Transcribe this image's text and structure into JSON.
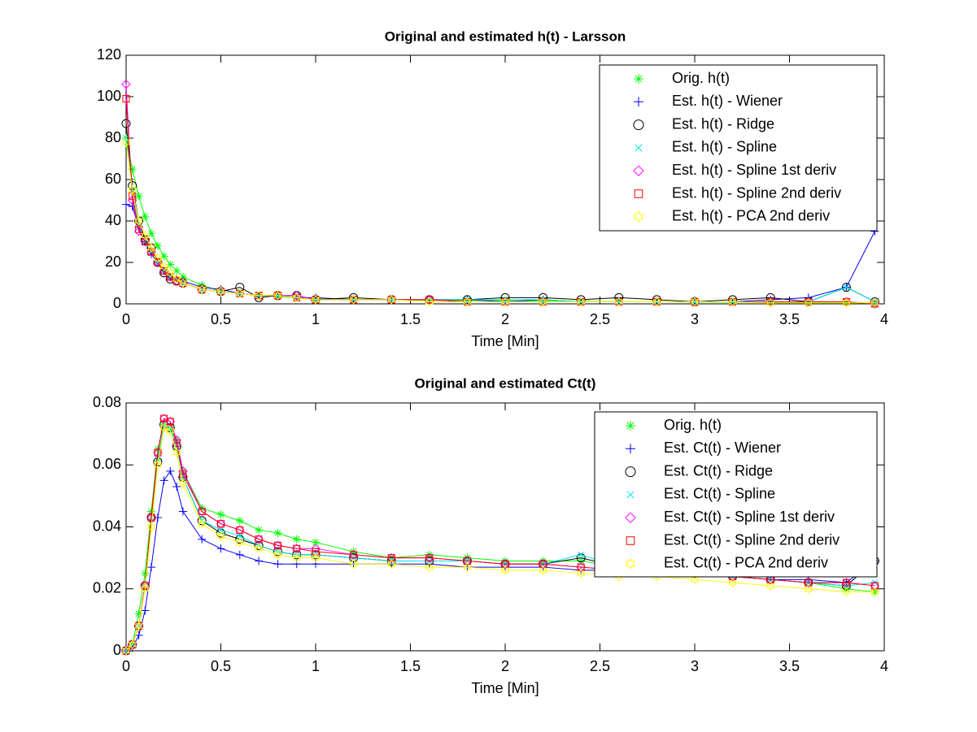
{
  "chart_data": [
    {
      "type": "line",
      "title": "Original and estimated h(t) - Larsson",
      "x_label": "Time [Min]",
      "x": [
        0,
        0.033,
        0.067,
        0.1,
        0.133,
        0.167,
        0.2,
        0.233,
        0.267,
        0.3,
        0.4,
        0.5,
        0.6,
        0.7,
        0.8,
        0.9,
        1.0,
        1.2,
        1.4,
        1.6,
        1.8,
        2.0,
        2.2,
        2.4,
        2.6,
        2.8,
        3.0,
        3.2,
        3.4,
        3.6,
        3.8,
        3.95
      ],
      "xlim": [
        0,
        4
      ],
      "xticks": [
        0,
        0.5,
        1,
        1.5,
        2,
        2.5,
        3,
        3.5,
        4
      ],
      "ylim": [
        0,
        120
      ],
      "yticks": [
        0,
        20,
        40,
        60,
        80,
        100,
        120
      ],
      "legend": "upper right",
      "series": [
        {
          "name": "Orig. h(t)",
          "color": "#00ff00",
          "marker": "star",
          "values": [
            80,
            65,
            52,
            42,
            34,
            28,
            23,
            19,
            16,
            13,
            9,
            6,
            5,
            4,
            3.5,
            3,
            2.5,
            2.2,
            2,
            1.8,
            1.6,
            1.5,
            1.3,
            1.2,
            1.1,
            1,
            0.9,
            0.8,
            0.7,
            0.6,
            0.5,
            0.5
          ]
        },
        {
          "name": "Est. h(t) - Wiener",
          "color": "#0000ff",
          "marker": "plus",
          "values": [
            48,
            47,
            37,
            30,
            24,
            20,
            16,
            13,
            12,
            11,
            8,
            7,
            5,
            4,
            4,
            3,
            3,
            2,
            2,
            2,
            2,
            1,
            2,
            1,
            1,
            1,
            1,
            1,
            2,
            3,
            8,
            35
          ]
        },
        {
          "name": "Est. h(t) - Ridge",
          "color": "#000000",
          "marker": "circle",
          "values": [
            87,
            57,
            40,
            31,
            27,
            20,
            15,
            12,
            11,
            10,
            7,
            6,
            8,
            3,
            4,
            4,
            2,
            3,
            2,
            2,
            2,
            3,
            3,
            2,
            3,
            2,
            1,
            2,
            3,
            1,
            8,
            1
          ]
        },
        {
          "name": "Est. h(t) - Spline",
          "color": "#00e5e5",
          "marker": "x",
          "values": [
            80,
            55,
            38,
            30,
            25,
            20,
            16,
            13,
            11,
            10,
            7,
            6,
            5,
            4,
            4,
            3,
            2,
            2,
            2,
            2,
            2,
            2,
            2,
            1,
            1,
            1,
            1,
            1,
            1,
            1,
            8,
            1
          ]
        },
        {
          "name": "Est. h(t) - Spline 1st deriv",
          "color": "#ff00ff",
          "marker": "diamond",
          "values": [
            106,
            50,
            35,
            30,
            25,
            20,
            16,
            13,
            11,
            10,
            7,
            6,
            5,
            4,
            4,
            4,
            2,
            2,
            2,
            2,
            1,
            1,
            1,
            1,
            1,
            1,
            1,
            1,
            1,
            1,
            1,
            0
          ]
        },
        {
          "name": "Est. h(t) - Spline 2nd deriv",
          "color": "#ff0000",
          "marker": "square",
          "values": [
            99,
            52,
            36,
            30,
            25,
            20,
            16,
            13,
            11,
            10,
            7,
            6,
            5,
            4,
            4,
            3,
            2,
            2,
            2,
            2,
            1,
            1,
            1,
            1,
            1,
            1,
            1,
            1,
            1,
            1,
            1,
            0
          ]
        },
        {
          "name": "Est. h(t) - PCA 2nd deriv",
          "color": "#ffff00",
          "marker": "hexagram",
          "values": [
            78,
            55,
            40,
            33,
            27,
            22,
            18,
            15,
            12,
            10,
            7,
            6,
            5,
            4,
            4,
            3,
            2,
            2,
            2,
            1,
            1,
            1,
            1,
            1,
            1,
            1,
            1,
            1,
            0.5,
            0.5,
            0.5,
            0.5
          ]
        }
      ]
    },
    {
      "type": "line",
      "title": "Original and estimated Ct(t)",
      "x_label": "Time [Min]",
      "x": [
        0,
        0.033,
        0.067,
        0.1,
        0.133,
        0.167,
        0.2,
        0.233,
        0.267,
        0.3,
        0.4,
        0.5,
        0.6,
        0.7,
        0.8,
        0.9,
        1.0,
        1.2,
        1.4,
        1.6,
        1.8,
        2.0,
        2.2,
        2.4,
        2.6,
        2.8,
        3.0,
        3.2,
        3.4,
        3.6,
        3.8,
        3.95
      ],
      "xlim": [
        0,
        4
      ],
      "xticks": [
        0,
        0.5,
        1,
        1.5,
        2,
        2.5,
        3,
        3.5,
        4
      ],
      "ylim": [
        0,
        0.08
      ],
      "yticks": [
        0,
        0.02,
        0.04,
        0.06,
        0.08
      ],
      "legend": "upper right",
      "series": [
        {
          "name": "Orig. h(t)",
          "color": "#00ff00",
          "marker": "star",
          "values": [
            0,
            0.002,
            0.012,
            0.025,
            0.045,
            0.065,
            0.073,
            0.072,
            0.068,
            0.058,
            0.046,
            0.044,
            0.042,
            0.039,
            0.038,
            0.036,
            0.035,
            0.032,
            0.03,
            0.031,
            0.03,
            0.029,
            0.029,
            0.029,
            0.027,
            0.026,
            0.025,
            0.024,
            0.023,
            0.022,
            0.02,
            0.019
          ]
        },
        {
          "name": "Est. Ct(t) - Wiener",
          "color": "#0000ff",
          "marker": "plus",
          "values": [
            0,
            0.001,
            0.005,
            0.013,
            0.027,
            0.043,
            0.055,
            0.058,
            0.053,
            0.045,
            0.036,
            0.033,
            0.031,
            0.029,
            0.028,
            0.028,
            0.028,
            0.028,
            0.028,
            0.028,
            0.027,
            0.027,
            0.027,
            0.026,
            0.026,
            0.025,
            0.025,
            0.024,
            0.023,
            0.023,
            0.022,
            0.029
          ]
        },
        {
          "name": "Est. Ct(t) - Ridge",
          "color": "#000000",
          "marker": "circle",
          "values": [
            0,
            0.002,
            0.008,
            0.021,
            0.043,
            0.061,
            0.073,
            0.072,
            0.066,
            0.056,
            0.042,
            0.038,
            0.036,
            0.034,
            0.032,
            0.031,
            0.031,
            0.03,
            0.029,
            0.029,
            0.029,
            0.028,
            0.028,
            0.03,
            0.027,
            0.026,
            0.025,
            0.024,
            0.023,
            0.022,
            0.021,
            0.029
          ]
        },
        {
          "name": "Est. Ct(t) - Spline",
          "color": "#00e5e5",
          "marker": "x",
          "values": [
            0,
            0.002,
            0.008,
            0.021,
            0.043,
            0.062,
            0.073,
            0.072,
            0.066,
            0.056,
            0.042,
            0.039,
            0.037,
            0.034,
            0.032,
            0.031,
            0.031,
            0.03,
            0.029,
            0.029,
            0.029,
            0.028,
            0.028,
            0.031,
            0.027,
            0.026,
            0.025,
            0.024,
            0.023,
            0.022,
            0.021,
            0.022
          ]
        },
        {
          "name": "Est. Ct(t) - Spline 1st deriv",
          "color": "#ff00ff",
          "marker": "diamond",
          "values": [
            0,
            0.002,
            0.008,
            0.021,
            0.043,
            0.064,
            0.075,
            0.074,
            0.068,
            0.058,
            0.045,
            0.041,
            0.039,
            0.036,
            0.034,
            0.033,
            0.033,
            0.031,
            0.03,
            0.03,
            0.029,
            0.028,
            0.028,
            0.027,
            0.026,
            0.026,
            0.025,
            0.024,
            0.023,
            0.022,
            0.022,
            0.021
          ]
        },
        {
          "name": "Est. Ct(t) - Spline 2nd deriv",
          "color": "#ff0000",
          "marker": "square",
          "values": [
            0,
            0.002,
            0.008,
            0.021,
            0.043,
            0.064,
            0.075,
            0.074,
            0.067,
            0.057,
            0.045,
            0.041,
            0.039,
            0.036,
            0.034,
            0.033,
            0.032,
            0.031,
            0.03,
            0.03,
            0.029,
            0.028,
            0.028,
            0.027,
            0.026,
            0.026,
            0.025,
            0.024,
            0.023,
            0.022,
            0.022,
            0.021
          ]
        },
        {
          "name": "Est. Ct(t) - PCA 2nd deriv",
          "color": "#ffff00",
          "marker": "hexagram",
          "values": [
            0,
            0.002,
            0.008,
            0.02,
            0.04,
            0.06,
            0.072,
            0.071,
            0.064,
            0.054,
            0.041,
            0.037,
            0.035,
            0.033,
            0.031,
            0.03,
            0.03,
            0.028,
            0.028,
            0.027,
            0.027,
            0.026,
            0.026,
            0.025,
            0.024,
            0.024,
            0.023,
            0.022,
            0.021,
            0.02,
            0.019,
            0.019
          ]
        }
      ]
    }
  ]
}
